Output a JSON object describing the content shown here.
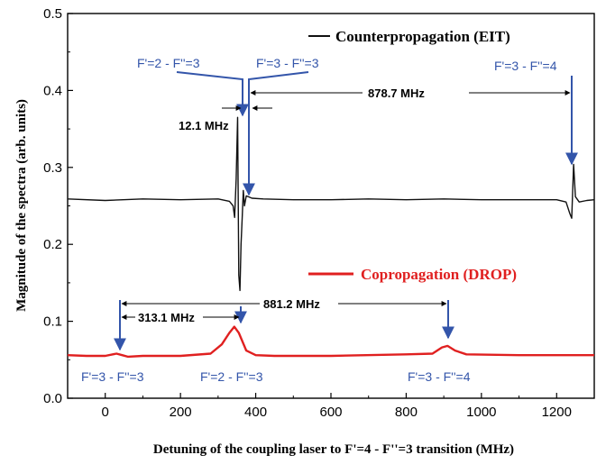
{
  "chart_data": {
    "type": "line",
    "xlabel": "Detuning of the coupling laser to F'=4 - F''=3 transition  (MHz)",
    "ylabel": "Magnitude of the spectra  (arb. units)",
    "xlim": [
      -100,
      1300
    ],
    "ylim": [
      0.0,
      0.5
    ],
    "xticks": [
      "0",
      "200",
      "400",
      "600",
      "800",
      "1000",
      "1200"
    ],
    "yticks": [
      "0.0",
      "0.1",
      "0.2",
      "0.3",
      "0.4",
      "0.5"
    ],
    "grid": false,
    "legend_placement": "inline",
    "series": [
      {
        "name": "Counterpropagation (EIT)",
        "color": "#111111",
        "x": [
          -100,
          0,
          100,
          200,
          300,
          330,
          340,
          344,
          348,
          352,
          355,
          358,
          361,
          364,
          367,
          370,
          375,
          390,
          420,
          500,
          600,
          700,
          800,
          900,
          1000,
          1100,
          1200,
          1225,
          1235,
          1240,
          1245,
          1250,
          1260,
          1280,
          1300
        ],
        "y": [
          0.259,
          0.257,
          0.259,
          0.258,
          0.259,
          0.256,
          0.25,
          0.235,
          0.285,
          0.365,
          0.16,
          0.14,
          0.2,
          0.235,
          0.27,
          0.25,
          0.263,
          0.26,
          0.259,
          0.258,
          0.258,
          0.259,
          0.258,
          0.259,
          0.258,
          0.258,
          0.258,
          0.255,
          0.24,
          0.234,
          0.304,
          0.262,
          0.255,
          0.257,
          0.258
        ]
      },
      {
        "name": "Copropagation (DROP)",
        "color": "#e02020",
        "x": [
          -100,
          -50,
          0,
          20,
          30,
          45,
          60,
          100,
          200,
          280,
          310,
          330,
          343,
          355,
          375,
          400,
          450,
          600,
          800,
          870,
          895,
          910,
          930,
          960,
          1100,
          1300
        ],
        "y": [
          0.056,
          0.055,
          0.055,
          0.057,
          0.058,
          0.056,
          0.054,
          0.055,
          0.055,
          0.058,
          0.07,
          0.085,
          0.093,
          0.085,
          0.062,
          0.056,
          0.055,
          0.055,
          0.057,
          0.058,
          0.066,
          0.068,
          0.062,
          0.057,
          0.056,
          0.056
        ]
      }
    ],
    "annotations": {
      "eit_labels": [
        "F'=2 - F''=3",
        "F'=3 - F''=3",
        "F'=3 - F''=4"
      ],
      "drop_labels": [
        "F'=3 - F''=3",
        "F'=2 - F''=3",
        "F'=3 - F''=4"
      ],
      "eit_splitting": "12.1 MHz",
      "eit_span": "878.7 MHz",
      "drop_splitting": "313.1 MHz",
      "drop_span": "881.2 MHz"
    }
  }
}
